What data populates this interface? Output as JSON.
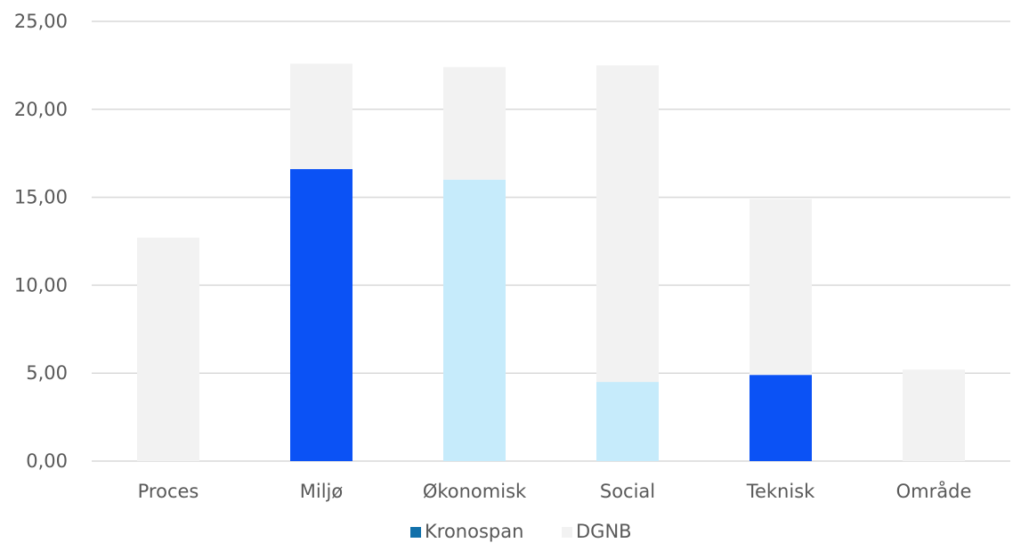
{
  "chart_data": {
    "type": "bar",
    "stacked": true,
    "categories": [
      "Proces",
      "Miljø",
      "Økonomisk",
      "Social",
      "Teknisk",
      "Område"
    ],
    "series": [
      {
        "name": "Kronospan",
        "values": [
          0,
          16.6,
          16.0,
          4.5,
          4.9,
          0
        ],
        "legend_color": "#1170AA",
        "bar_colors": [
          "#0B52F5",
          "#0B52F5",
          "#C6EBFB",
          "#C6EBFB",
          "#0B52F5",
          "#0B52F5"
        ]
      },
      {
        "name": "DGNB",
        "values": [
          12.7,
          6.0,
          6.4,
          18.0,
          10.0,
          5.2
        ],
        "legend_color": "#F2F2F2",
        "bar_colors": [
          "#F2F2F2",
          "#F2F2F2",
          "#F2F2F2",
          "#F2F2F2",
          "#F2F2F2",
          "#F2F2F2"
        ]
      }
    ],
    "ylim": [
      0,
      25
    ],
    "yticks": [
      "0,00",
      "5,00",
      "10,00",
      "15,00",
      "20,00",
      "25,00"
    ],
    "ytick_values": [
      0,
      5,
      10,
      15,
      20,
      25
    ],
    "title": "",
    "xlabel": "",
    "ylabel": "",
    "grid": true,
    "legend_position": "bottom-center",
    "colors": {
      "gridline": "#D9D9D9",
      "text": "#595959"
    }
  }
}
